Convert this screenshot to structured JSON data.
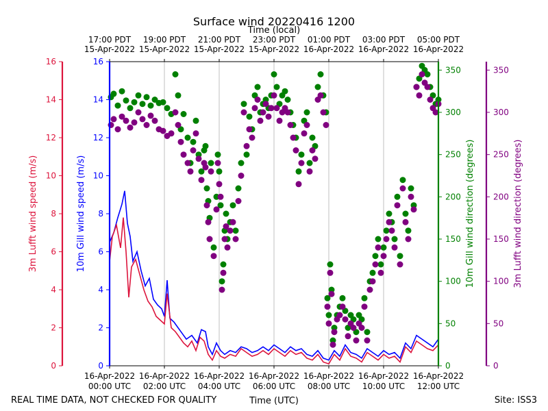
{
  "chart_data": {
    "type": "scatter",
    "title": "Surface wind 20220416 1200",
    "top_xlabel": "Time (local)",
    "xlabel": "Time (UTC)",
    "footer_left": "REAL TIME DATA, NOT CHECKED FOR QUALITY",
    "footer_right": "Site: ISS3",
    "x_range_hours": [
      0,
      12
    ],
    "bottom_ticks": [
      {
        "h": 0,
        "l1": "16-Apr-2022",
        "l2": "00:00 UTC"
      },
      {
        "h": 2,
        "l1": "16-Apr-2022",
        "l2": "02:00 UTC"
      },
      {
        "h": 4,
        "l1": "16-Apr-2022",
        "l2": "04:00 UTC"
      },
      {
        "h": 6,
        "l1": "16-Apr-2022",
        "l2": "06:00 UTC"
      },
      {
        "h": 8,
        "l1": "16-Apr-2022",
        "l2": "08:00 UTC"
      },
      {
        "h": 10,
        "l1": "16-Apr-2022",
        "l2": "10:00 UTC"
      },
      {
        "h": 12,
        "l1": "16-Apr-2022",
        "l2": "12:00 UTC"
      }
    ],
    "top_ticks": [
      {
        "h": 0,
        "l1": "17:00 PDT",
        "l2": "15-Apr-2022"
      },
      {
        "h": 2,
        "l1": "19:00 PDT",
        "l2": "15-Apr-2022"
      },
      {
        "h": 4,
        "l1": "21:00 PDT",
        "l2": "15-Apr-2022"
      },
      {
        "h": 6,
        "l1": "23:00 PDT",
        "l2": "15-Apr-2022"
      },
      {
        "h": 8,
        "l1": "01:00 PDT",
        "l2": "16-Apr-2022"
      },
      {
        "h": 10,
        "l1": "03:00 PDT",
        "l2": "16-Apr-2022"
      },
      {
        "h": 12,
        "l1": "05:00 PDT",
        "l2": "16-Apr-2022"
      }
    ],
    "axes": {
      "luft_speed": {
        "label": "3m Lufft wind speed (m/s)",
        "color": "#dc143c",
        "range": [
          0,
          16
        ],
        "ticks": [
          0,
          2,
          4,
          6,
          8,
          10,
          12,
          14,
          16
        ]
      },
      "gill_speed": {
        "label": "10m Gill wind speed (m/s)",
        "color": "#0000ff",
        "range": [
          0,
          16
        ],
        "ticks": [
          0,
          2,
          4,
          6,
          8,
          10,
          12,
          14,
          16
        ]
      },
      "gill_dir": {
        "label": "10m Gill wind direction (degrees)",
        "color": "#008000",
        "range": [
          0,
          360
        ],
        "ticks": [
          0,
          50,
          100,
          150,
          200,
          250,
          300,
          350
        ]
      },
      "luft_dir": {
        "label": "3m Lufft wind direction (degrees)",
        "color": "#800080",
        "range": [
          0,
          360
        ],
        "ticks": [
          0,
          50,
          100,
          150,
          200,
          250,
          300,
          350
        ]
      }
    },
    "series": [
      {
        "name": "10m Gill wind speed",
        "kind": "line",
        "axis": "gill_speed",
        "color": "#0000ff",
        "x": [
          0,
          0.15,
          0.3,
          0.45,
          0.55,
          0.65,
          0.75,
          0.85,
          1.0,
          1.15,
          1.3,
          1.45,
          1.6,
          1.75,
          1.9,
          2.0,
          2.1,
          2.2,
          2.35,
          2.5,
          2.65,
          2.8,
          3.0,
          3.2,
          3.35,
          3.5,
          3.6,
          3.75,
          3.9,
          4.05,
          4.2,
          4.4,
          4.6,
          4.8,
          5.0,
          5.2,
          5.4,
          5.6,
          5.8,
          6.0,
          6.2,
          6.4,
          6.6,
          6.8,
          7.0,
          7.2,
          7.4,
          7.6,
          7.8,
          8.0,
          8.2,
          8.4,
          8.6,
          8.8,
          9.0,
          9.2,
          9.4,
          9.6,
          9.8,
          10.0,
          10.2,
          10.4,
          10.6,
          10.8,
          11.0,
          11.2,
          11.4,
          11.6,
          11.8,
          12.0
        ],
        "y": [
          6.5,
          7.0,
          7.8,
          8.5,
          9.2,
          7.5,
          6.8,
          5.5,
          6.0,
          5.0,
          4.2,
          4.6,
          3.5,
          3.2,
          3.0,
          2.6,
          4.5,
          2.5,
          2.3,
          2.0,
          1.7,
          1.4,
          1.6,
          1.2,
          1.9,
          1.8,
          1.0,
          0.6,
          1.2,
          0.8,
          0.6,
          0.8,
          0.7,
          1.0,
          0.9,
          0.7,
          0.8,
          1.0,
          0.8,
          1.1,
          0.9,
          0.7,
          1.0,
          0.8,
          0.9,
          0.6,
          0.5,
          0.8,
          0.4,
          0.3,
          0.8,
          0.5,
          1.1,
          0.7,
          0.6,
          0.4,
          0.9,
          0.7,
          0.5,
          0.8,
          0.6,
          0.7,
          0.4,
          1.2,
          0.9,
          1.6,
          1.4,
          1.2,
          1.0,
          1.4
        ]
      },
      {
        "name": "3m Lufft wind speed",
        "kind": "line",
        "axis": "luft_speed",
        "color": "#dc143c",
        "x": [
          0,
          0.1,
          0.25,
          0.4,
          0.5,
          0.6,
          0.7,
          0.8,
          0.95,
          1.1,
          1.25,
          1.4,
          1.55,
          1.7,
          1.85,
          2.0,
          2.1,
          2.25,
          2.4,
          2.55,
          2.7,
          2.85,
          3.0,
          3.15,
          3.3,
          3.45,
          3.6,
          3.75,
          3.9,
          4.05,
          4.2,
          4.4,
          4.6,
          4.8,
          5.0,
          5.2,
          5.4,
          5.6,
          5.8,
          6.0,
          6.2,
          6.4,
          6.6,
          6.8,
          7.0,
          7.2,
          7.4,
          7.6,
          7.8,
          8.0,
          8.2,
          8.4,
          8.6,
          8.8,
          9.0,
          9.2,
          9.4,
          9.6,
          9.8,
          10.0,
          10.2,
          10.4,
          10.6,
          10.8,
          11.0,
          11.2,
          11.4,
          11.6,
          11.8,
          12.0
        ],
        "y": [
          5.5,
          6.8,
          7.4,
          6.2,
          7.8,
          6.0,
          3.6,
          5.2,
          5.6,
          4.8,
          4.0,
          3.4,
          3.1,
          2.6,
          2.4,
          2.2,
          3.8,
          2.0,
          1.8,
          1.5,
          1.2,
          1.0,
          1.3,
          0.8,
          1.5,
          1.3,
          0.6,
          0.3,
          0.8,
          0.5,
          0.4,
          0.6,
          0.5,
          0.9,
          0.7,
          0.5,
          0.6,
          0.8,
          0.6,
          0.9,
          0.7,
          0.5,
          0.8,
          0.6,
          0.7,
          0.4,
          0.3,
          0.6,
          0.2,
          0.1,
          0.6,
          0.3,
          0.9,
          0.5,
          0.4,
          0.2,
          0.7,
          0.5,
          0.3,
          0.6,
          0.4,
          0.5,
          0.2,
          1.0,
          0.7,
          1.3,
          1.1,
          0.9,
          0.8,
          1.1
        ]
      },
      {
        "name": "10m Gill wind direction",
        "kind": "points",
        "axis": "gill_dir",
        "color": "#008000",
        "x": [
          0.05,
          0.15,
          0.3,
          0.45,
          0.6,
          0.75,
          0.9,
          1.05,
          1.2,
          1.35,
          1.5,
          1.65,
          1.8,
          1.95,
          2.1,
          2.25,
          2.4,
          2.5,
          2.6,
          2.7,
          2.85,
          2.95,
          3.05,
          3.15,
          3.25,
          3.35,
          3.45,
          3.5,
          3.55,
          3.6,
          3.65,
          3.7,
          3.8,
          3.9,
          3.95,
          4.0,
          4.05,
          4.1,
          4.15,
          4.2,
          4.25,
          4.3,
          4.4,
          4.5,
          4.6,
          4.7,
          4.8,
          4.9,
          5.0,
          5.1,
          5.2,
          5.3,
          5.4,
          5.5,
          5.6,
          5.7,
          5.8,
          5.9,
          6.0,
          6.1,
          6.2,
          6.3,
          6.4,
          6.5,
          6.6,
          6.7,
          6.8,
          6.9,
          7.0,
          7.1,
          7.2,
          7.3,
          7.4,
          7.5,
          7.6,
          7.7,
          7.8,
          7.9,
          7.95,
          8.0,
          8.05,
          8.1,
          8.15,
          8.2,
          8.3,
          8.4,
          8.5,
          8.6,
          8.7,
          8.8,
          8.9,
          9.0,
          9.1,
          9.2,
          9.3,
          9.4,
          9.5,
          9.6,
          9.7,
          9.8,
          9.9,
          10.0,
          10.1,
          10.2,
          10.3,
          10.4,
          10.5,
          10.6,
          10.7,
          10.8,
          10.9,
          11.0,
          11.1,
          11.2,
          11.3,
          11.4,
          11.5,
          11.6,
          11.7,
          11.8,
          11.9,
          12.0
        ],
        "y": [
          318,
          322,
          308,
          325,
          314,
          305,
          312,
          320,
          310,
          318,
          308,
          315,
          311,
          312,
          305,
          298,
          345,
          320,
          280,
          298,
          270,
          240,
          265,
          290,
          250,
          230,
          255,
          260,
          210,
          195,
          175,
          240,
          140,
          200,
          250,
          230,
          190,
          100,
          120,
          160,
          180,
          150,
          170,
          190,
          160,
          210,
          240,
          310,
          250,
          295,
          280,
          320,
          330,
          300,
          310,
          315,
          305,
          320,
          345,
          330,
          310,
          320,
          325,
          315,
          300,
          285,
          270,
          230,
          250,
          290,
          300,
          240,
          270,
          260,
          330,
          345,
          320,
          300,
          80,
          60,
          120,
          90,
          30,
          45,
          60,
          70,
          80,
          65,
          45,
          60,
          55,
          40,
          60,
          55,
          80,
          40,
          100,
          110,
          130,
          150,
          120,
          140,
          160,
          180,
          170,
          150,
          200,
          130,
          220,
          180,
          160,
          210,
          190,
          330,
          340,
          355,
          350,
          345,
          330,
          320,
          310,
          315
        ]
      },
      {
        "name": "3m Lufft wind direction",
        "kind": "points",
        "axis": "luft_dir",
        "color": "#800080",
        "x": [
          0.05,
          0.15,
          0.3,
          0.45,
          0.6,
          0.75,
          0.9,
          1.05,
          1.2,
          1.35,
          1.5,
          1.65,
          1.8,
          1.95,
          2.1,
          2.25,
          2.4,
          2.5,
          2.6,
          2.7,
          2.85,
          2.95,
          3.05,
          3.15,
          3.25,
          3.35,
          3.45,
          3.5,
          3.55,
          3.6,
          3.65,
          3.7,
          3.8,
          3.9,
          3.95,
          4.0,
          4.05,
          4.1,
          4.15,
          4.2,
          4.25,
          4.3,
          4.4,
          4.5,
          4.6,
          4.7,
          4.8,
          4.9,
          5.0,
          5.1,
          5.2,
          5.3,
          5.4,
          5.5,
          5.6,
          5.7,
          5.8,
          5.9,
          6.0,
          6.1,
          6.2,
          6.3,
          6.4,
          6.5,
          6.6,
          6.7,
          6.8,
          6.9,
          7.0,
          7.1,
          7.2,
          7.3,
          7.4,
          7.5,
          7.6,
          7.7,
          7.8,
          7.9,
          7.95,
          8.0,
          8.05,
          8.1,
          8.15,
          8.2,
          8.3,
          8.4,
          8.5,
          8.6,
          8.7,
          8.8,
          8.9,
          9.0,
          9.1,
          9.2,
          9.3,
          9.4,
          9.5,
          9.6,
          9.7,
          9.8,
          9.9,
          10.0,
          10.1,
          10.2,
          10.3,
          10.4,
          10.5,
          10.6,
          10.7,
          10.8,
          10.9,
          11.0,
          11.1,
          11.2,
          11.3,
          11.4,
          11.5,
          11.6,
          11.7,
          11.8,
          11.9,
          12.0
        ],
        "y": [
          285,
          292,
          280,
          295,
          290,
          282,
          288,
          300,
          292,
          285,
          296,
          290,
          280,
          278,
          272,
          275,
          300,
          285,
          265,
          250,
          240,
          230,
          255,
          275,
          245,
          220,
          240,
          235,
          190,
          170,
          150,
          230,
          130,
          185,
          240,
          215,
          200,
          90,
          110,
          150,
          165,
          140,
          160,
          170,
          150,
          195,
          225,
          300,
          260,
          280,
          270,
          305,
          315,
          290,
          300,
          310,
          295,
          305,
          320,
          305,
          290,
          300,
          305,
          300,
          285,
          270,
          255,
          215,
          240,
          275,
          285,
          230,
          255,
          245,
          315,
          320,
          300,
          285,
          70,
          50,
          110,
          85,
          25,
          40,
          55,
          60,
          70,
          55,
          35,
          50,
          45,
          30,
          50,
          45,
          70,
          30,
          90,
          100,
          120,
          140,
          110,
          130,
          150,
          170,
          160,
          140,
          190,
          120,
          210,
          170,
          150,
          200,
          185,
          330,
          320,
          345,
          335,
          330,
          315,
          305,
          300,
          310
        ]
      }
    ]
  }
}
